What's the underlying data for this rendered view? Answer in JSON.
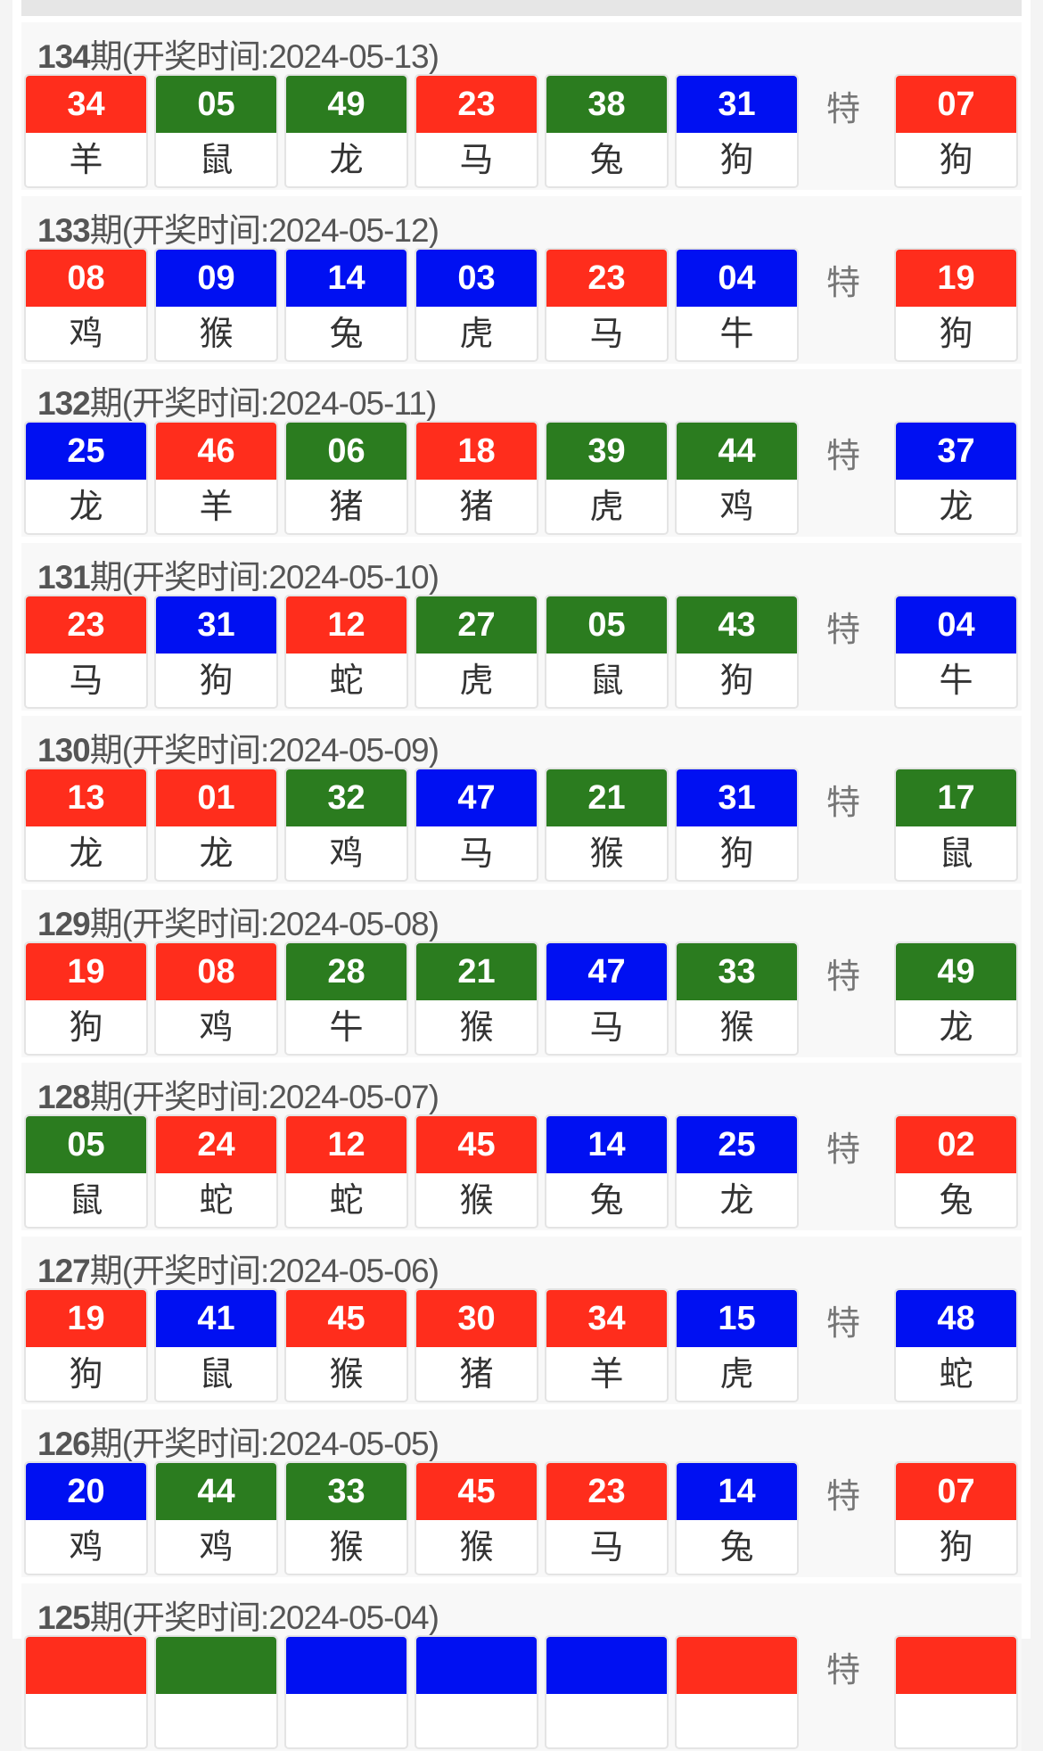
{
  "colors": {
    "red": "#ff2d1c",
    "green": "#2b7c1f",
    "blue": "#0010f2"
  },
  "special_label": "特",
  "draws": [
    {
      "issue": "134",
      "suffix": "期(开奖时间:2024-05-13)",
      "balls": [
        [
          "34",
          "red",
          "羊"
        ],
        [
          "05",
          "green",
          "鼠"
        ],
        [
          "49",
          "green",
          "龙"
        ],
        [
          "23",
          "red",
          "马"
        ],
        [
          "38",
          "green",
          "兔"
        ],
        [
          "31",
          "blue",
          "狗"
        ]
      ],
      "special": [
        "07",
        "red",
        "狗"
      ]
    },
    {
      "issue": "133",
      "suffix": "期(开奖时间:2024-05-12)",
      "balls": [
        [
          "08",
          "red",
          "鸡"
        ],
        [
          "09",
          "blue",
          "猴"
        ],
        [
          "14",
          "blue",
          "兔"
        ],
        [
          "03",
          "blue",
          "虎"
        ],
        [
          "23",
          "red",
          "马"
        ],
        [
          "04",
          "blue",
          "牛"
        ]
      ],
      "special": [
        "19",
        "red",
        "狗"
      ]
    },
    {
      "issue": "132",
      "suffix": "期(开奖时间:2024-05-11)",
      "balls": [
        [
          "25",
          "blue",
          "龙"
        ],
        [
          "46",
          "red",
          "羊"
        ],
        [
          "06",
          "green",
          "猪"
        ],
        [
          "18",
          "red",
          "猪"
        ],
        [
          "39",
          "green",
          "虎"
        ],
        [
          "44",
          "green",
          "鸡"
        ]
      ],
      "special": [
        "37",
        "blue",
        "龙"
      ]
    },
    {
      "issue": "131",
      "suffix": "期(开奖时间:2024-05-10)",
      "balls": [
        [
          "23",
          "red",
          "马"
        ],
        [
          "31",
          "blue",
          "狗"
        ],
        [
          "12",
          "red",
          "蛇"
        ],
        [
          "27",
          "green",
          "虎"
        ],
        [
          "05",
          "green",
          "鼠"
        ],
        [
          "43",
          "green",
          "狗"
        ]
      ],
      "special": [
        "04",
        "blue",
        "牛"
      ]
    },
    {
      "issue": "130",
      "suffix": "期(开奖时间:2024-05-09)",
      "balls": [
        [
          "13",
          "red",
          "龙"
        ],
        [
          "01",
          "red",
          "龙"
        ],
        [
          "32",
          "green",
          "鸡"
        ],
        [
          "47",
          "blue",
          "马"
        ],
        [
          "21",
          "green",
          "猴"
        ],
        [
          "31",
          "blue",
          "狗"
        ]
      ],
      "special": [
        "17",
        "green",
        "鼠"
      ]
    },
    {
      "issue": "129",
      "suffix": "期(开奖时间:2024-05-08)",
      "balls": [
        [
          "19",
          "red",
          "狗"
        ],
        [
          "08",
          "red",
          "鸡"
        ],
        [
          "28",
          "green",
          "牛"
        ],
        [
          "21",
          "green",
          "猴"
        ],
        [
          "47",
          "blue",
          "马"
        ],
        [
          "33",
          "green",
          "猴"
        ]
      ],
      "special": [
        "49",
        "green",
        "龙"
      ]
    },
    {
      "issue": "128",
      "suffix": "期(开奖时间:2024-05-07)",
      "balls": [
        [
          "05",
          "green",
          "鼠"
        ],
        [
          "24",
          "red",
          "蛇"
        ],
        [
          "12",
          "red",
          "蛇"
        ],
        [
          "45",
          "red",
          "猴"
        ],
        [
          "14",
          "blue",
          "兔"
        ],
        [
          "25",
          "blue",
          "龙"
        ]
      ],
      "special": [
        "02",
        "red",
        "兔"
      ]
    },
    {
      "issue": "127",
      "suffix": "期(开奖时间:2024-05-06)",
      "balls": [
        [
          "19",
          "red",
          "狗"
        ],
        [
          "41",
          "blue",
          "鼠"
        ],
        [
          "45",
          "red",
          "猴"
        ],
        [
          "30",
          "red",
          "猪"
        ],
        [
          "34",
          "red",
          "羊"
        ],
        [
          "15",
          "blue",
          "虎"
        ]
      ],
      "special": [
        "48",
        "blue",
        "蛇"
      ]
    },
    {
      "issue": "126",
      "suffix": "期(开奖时间:2024-05-05)",
      "balls": [
        [
          "20",
          "blue",
          "鸡"
        ],
        [
          "44",
          "green",
          "鸡"
        ],
        [
          "33",
          "green",
          "猴"
        ],
        [
          "45",
          "red",
          "猴"
        ],
        [
          "23",
          "red",
          "马"
        ],
        [
          "14",
          "blue",
          "兔"
        ]
      ],
      "special": [
        "07",
        "red",
        "狗"
      ]
    },
    {
      "issue": "125",
      "suffix": "期(开奖时间:2024-05-04)",
      "balls": [
        [
          "",
          "red",
          ""
        ],
        [
          "",
          "green",
          ""
        ],
        [
          "",
          "blue",
          ""
        ],
        [
          "",
          "blue",
          ""
        ],
        [
          "",
          "blue",
          ""
        ],
        [
          "",
          "red",
          ""
        ]
      ],
      "special": [
        "",
        "red",
        ""
      ]
    }
  ]
}
